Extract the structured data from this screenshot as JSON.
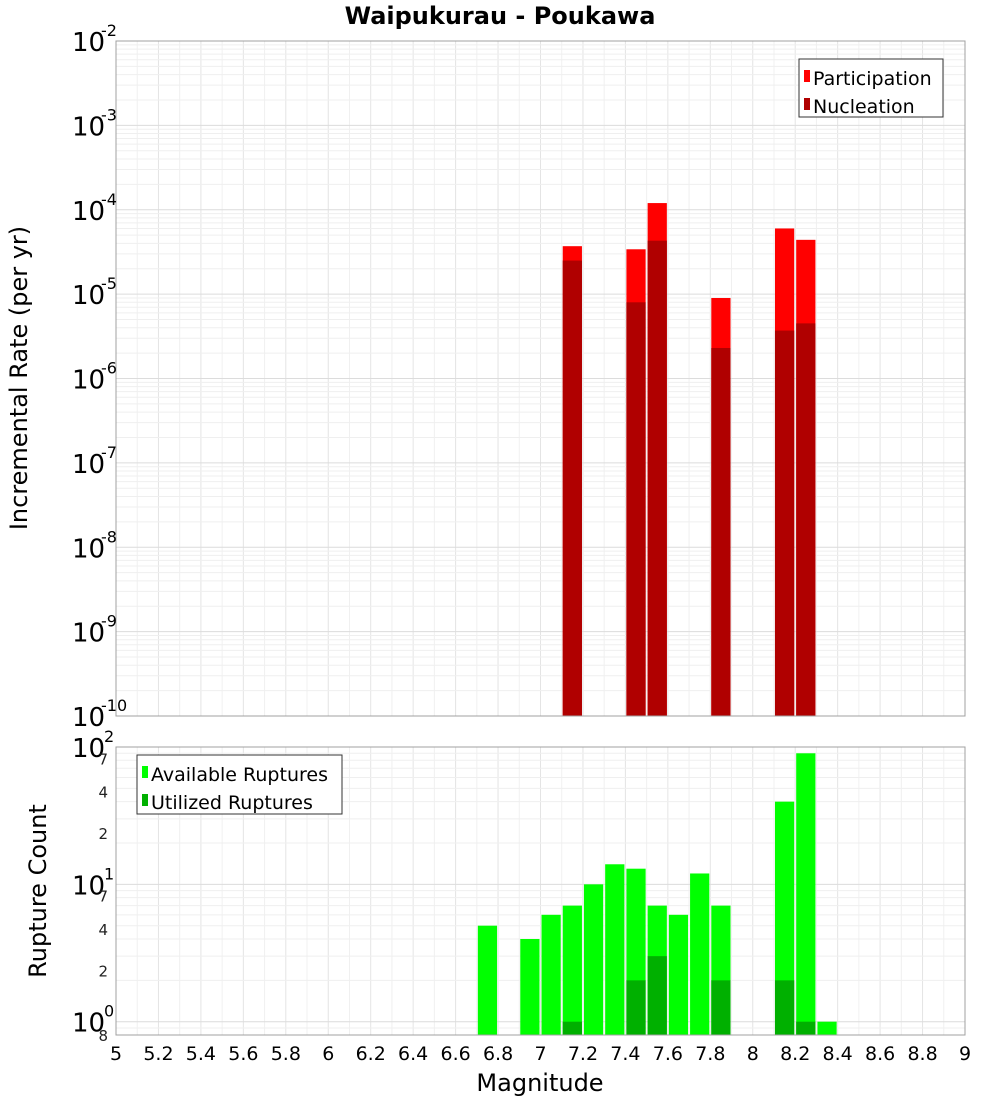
{
  "chart_data": [
    {
      "type": "bar",
      "title": "Waipukurau - Poukawa",
      "xlabel": "Magnitude",
      "ylabel": "Incremental Rate (per yr)",
      "yscale": "log",
      "ylim": [
        1e-10,
        0.01
      ],
      "xlim": [
        5,
        9
      ],
      "grid": true,
      "legend": "top-right",
      "y_tick_labels": [
        {
          "base": "10",
          "exp": "-2"
        },
        {
          "base": "10",
          "exp": "-3"
        },
        {
          "base": "10",
          "exp": "-4"
        },
        {
          "base": "10",
          "exp": "-5"
        },
        {
          "base": "10",
          "exp": "-6"
        },
        {
          "base": "10",
          "exp": "-7"
        },
        {
          "base": "10",
          "exp": "-8"
        },
        {
          "base": "10",
          "exp": "-9"
        },
        {
          "base": "10",
          "exp": "-10"
        }
      ],
      "series": [
        {
          "name": "Participation",
          "color": "#ff0000",
          "x": [
            7.15,
            7.45,
            7.55,
            7.85,
            8.15,
            8.25
          ],
          "values": [
            3.7e-05,
            3.4e-05,
            0.00012,
            9e-06,
            6e-05,
            4.4e-05
          ]
        },
        {
          "name": "Nucleation",
          "color": "#b00000",
          "x": [
            7.15,
            7.45,
            7.55,
            7.85,
            8.15,
            8.25
          ],
          "values": [
            2.5e-05,
            8e-06,
            4.3e-05,
            2.3e-06,
            3.7e-06,
            4.5e-06
          ]
        }
      ]
    },
    {
      "type": "bar",
      "xlabel": "Magnitude",
      "ylabel": "Rupture Count",
      "yscale": "log",
      "ylim": [
        0.8,
        100
      ],
      "xlim": [
        5,
        9
      ],
      "grid": true,
      "legend": "top-left",
      "x_ticks": [
        "5",
        "5.2",
        "5.4",
        "5.6",
        "5.8",
        "6",
        "6.2",
        "6.4",
        "6.6",
        "6.8",
        "7",
        "7.2",
        "7.4",
        "7.6",
        "7.8",
        "8",
        "8.2",
        "8.4",
        "8.6",
        "8.8",
        "9"
      ],
      "y_tick_labels": [
        {
          "base": "10",
          "exp": "2"
        },
        {
          "base": "10",
          "exp": "1"
        },
        {
          "base": "10",
          "exp": "0"
        }
      ],
      "y_minor_ticks": [
        {
          "label": "7",
          "value": 70
        },
        {
          "label": "4",
          "value": 40
        },
        {
          "label": "2",
          "value": 20
        },
        {
          "label": "7",
          "value": 7
        },
        {
          "label": "4",
          "value": 4
        },
        {
          "label": "2",
          "value": 2
        },
        {
          "label": "8",
          "value": 0.8
        }
      ],
      "series": [
        {
          "name": "Available Ruptures",
          "color": "#00ff00",
          "x": [
            6.75,
            6.95,
            7.05,
            7.15,
            7.25,
            7.35,
            7.45,
            7.55,
            7.65,
            7.75,
            7.85,
            8.15,
            8.25,
            8.35
          ],
          "values": [
            5,
            4,
            6,
            7,
            10,
            14,
            13,
            7,
            6,
            12,
            7,
            40,
            90,
            1
          ]
        },
        {
          "name": "Utilized Ruptures",
          "color": "#00b000",
          "x": [
            7.15,
            7.45,
            7.55,
            7.85,
            8.15,
            8.25
          ],
          "values": [
            1,
            2,
            3,
            2,
            2,
            1
          ]
        }
      ]
    }
  ]
}
